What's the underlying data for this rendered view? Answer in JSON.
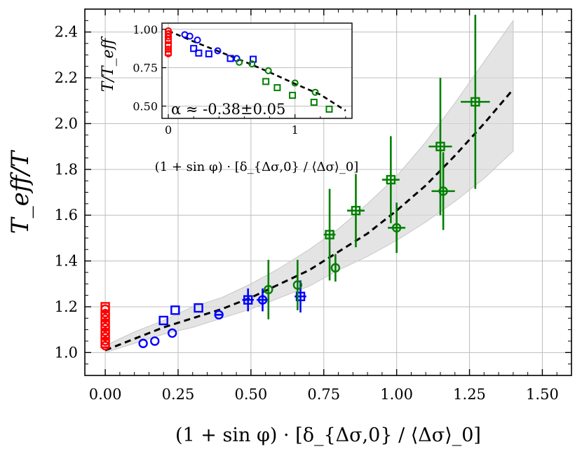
{
  "chart_data": [
    {
      "type": "scatter",
      "title": "",
      "xlabel": "(1 + sin φ) · [δ_{Δσ,0} / ⟨Δσ⟩_0]",
      "ylabel": "T_eff/T",
      "xlim": [
        -0.07,
        1.6
      ],
      "ylim": [
        0.9,
        2.5
      ],
      "grid": true,
      "x_ticks": [
        "0.00",
        "0.25",
        "0.50",
        "0.75",
        "1.00",
        "1.25",
        "1.50"
      ],
      "y_ticks": [
        "1.0",
        "1.2",
        "1.4",
        "1.6",
        "1.8",
        "2.0",
        "2.2",
        "2.4"
      ],
      "x_tick_values": [
        0,
        0.25,
        0.5,
        0.75,
        1.0,
        1.25,
        1.5
      ],
      "y_tick_values": [
        1.0,
        1.2,
        1.4,
        1.6,
        1.8,
        2.0,
        2.2,
        2.4
      ],
      "fit": {
        "x": [
          0,
          0.1,
          0.2,
          0.3,
          0.4,
          0.5,
          0.6,
          0.7,
          0.8,
          0.9,
          1.0,
          1.1,
          1.2,
          1.3,
          1.4
        ],
        "y": [
          1.01,
          1.06,
          1.11,
          1.15,
          1.19,
          1.24,
          1.3,
          1.36,
          1.44,
          1.52,
          1.62,
          1.73,
          1.86,
          2.0,
          2.15
        ],
        "band_upper": [
          1.03,
          1.09,
          1.14,
          1.2,
          1.24,
          1.3,
          1.37,
          1.45,
          1.54,
          1.65,
          1.77,
          1.92,
          2.09,
          2.27,
          2.45
        ],
        "band_lower": [
          1.0,
          1.04,
          1.08,
          1.11,
          1.15,
          1.19,
          1.24,
          1.29,
          1.36,
          1.42,
          1.49,
          1.57,
          1.66,
          1.76,
          1.88
        ]
      },
      "series": [
        {
          "name": "red circles",
          "color": "#ff0000",
          "marker": "circle",
          "x": [
            0,
            0,
            0,
            0,
            0,
            0,
            0,
            0,
            0
          ],
          "y": [
            1.03,
            1.05,
            1.07,
            1.09,
            1.11,
            1.13,
            1.15,
            1.17,
            1.19
          ],
          "xerr": [
            0,
            0,
            0,
            0,
            0,
            0,
            0,
            0,
            0
          ],
          "yerr": [
            0,
            0,
            0,
            0,
            0,
            0,
            0,
            0,
            0
          ]
        },
        {
          "name": "red squares",
          "color": "#ff0000",
          "marker": "square",
          "x": [
            0,
            0,
            0,
            0,
            0
          ],
          "y": [
            1.04,
            1.08,
            1.12,
            1.16,
            1.2
          ],
          "xerr": [
            0,
            0,
            0,
            0,
            0
          ],
          "yerr": [
            0,
            0,
            0,
            0,
            0
          ]
        },
        {
          "name": "blue circles",
          "color": "#0000ff",
          "marker": "circle",
          "x": [
            0.13,
            0.17,
            0.23,
            0.39,
            0.54
          ],
          "y": [
            1.04,
            1.05,
            1.085,
            1.165,
            1.23
          ],
          "xerr": [
            0,
            0,
            0,
            0.01,
            0.02
          ],
          "yerr": [
            0,
            0,
            0,
            0,
            0.05
          ]
        },
        {
          "name": "blue squares",
          "color": "#0000ff",
          "marker": "square",
          "x": [
            0.2,
            0.24,
            0.32,
            0.49,
            0.67
          ],
          "y": [
            1.14,
            1.185,
            1.195,
            1.23,
            1.245
          ],
          "xerr": [
            0,
            0,
            0,
            0.02,
            0.02
          ],
          "yerr": [
            0,
            0,
            0,
            0.05,
            0.07
          ]
        },
        {
          "name": "green circles",
          "color": "#007f00",
          "marker": "circle",
          "x": [
            0.56,
            0.66,
            0.79,
            1.0,
            1.16
          ],
          "y": [
            1.275,
            1.295,
            1.37,
            1.545,
            1.705
          ],
          "xerr": [
            0,
            0,
            0,
            0.03,
            0.04
          ],
          "yerr": [
            0.13,
            0.11,
            0.06,
            0.11,
            0.17
          ]
        },
        {
          "name": "green squares",
          "color": "#007f00",
          "marker": "square",
          "x": [
            0.77,
            0.86,
            0.98,
            1.15,
            1.27
          ],
          "y": [
            1.515,
            1.62,
            1.755,
            1.9,
            2.095
          ],
          "xerr": [
            0.02,
            0.03,
            0.03,
            0.04,
            0.05
          ],
          "yerr": [
            0.2,
            0.16,
            0.19,
            0.3,
            0.38
          ]
        }
      ]
    },
    {
      "type": "scatter",
      "title": "",
      "xlabel": "(1 + sin φ) · [δ_{Δσ,0} / ⟨Δσ⟩_0]",
      "ylabel": "T/T_eff",
      "xlim": [
        -0.05,
        1.45
      ],
      "ylim": [
        0.42,
        1.04
      ],
      "grid": true,
      "x_ticks": [
        "0",
        "1"
      ],
      "y_ticks": [
        "1.00",
        "0.75",
        "0.50"
      ],
      "x_tick_values": [
        0,
        1
      ],
      "y_tick_values": [
        1.0,
        0.75,
        0.5
      ],
      "annotation": "α ≈ -0.38±0.05",
      "fit": {
        "x": [
          0,
          0.2,
          0.4,
          0.6,
          0.8,
          1.0,
          1.2,
          1.4
        ],
        "y": [
          0.99,
          0.92,
          0.855,
          0.79,
          0.72,
          0.645,
          0.575,
          0.47
        ]
      },
      "series": [
        {
          "name": "red circles",
          "color": "#ff0000",
          "marker": "circle",
          "x": [
            0,
            0,
            0,
            0,
            0,
            0,
            0
          ],
          "y": [
            0.84,
            0.87,
            0.9,
            0.93,
            0.95,
            0.97,
            0.99
          ]
        },
        {
          "name": "red squares",
          "color": "#ff0000",
          "marker": "square",
          "x": [
            0,
            0,
            0,
            0
          ],
          "y": [
            0.85,
            0.89,
            0.93,
            0.97
          ]
        },
        {
          "name": "blue circles",
          "color": "#0000ff",
          "marker": "circle",
          "x": [
            0.13,
            0.17,
            0.23,
            0.39,
            0.54
          ],
          "y": [
            0.965,
            0.955,
            0.93,
            0.86,
            0.81
          ]
        },
        {
          "name": "blue squares",
          "color": "#0000ff",
          "marker": "square",
          "x": [
            0.2,
            0.24,
            0.32,
            0.49,
            0.67
          ],
          "y": [
            0.875,
            0.845,
            0.84,
            0.81,
            0.805
          ]
        },
        {
          "name": "green circles",
          "color": "#007f00",
          "marker": "circle",
          "x": [
            0.56,
            0.66,
            0.79,
            1.0,
            1.16
          ],
          "y": [
            0.785,
            0.775,
            0.73,
            0.65,
            0.59
          ]
        },
        {
          "name": "green squares",
          "color": "#007f00",
          "marker": "square",
          "x": [
            0.77,
            0.86,
            0.98,
            1.15,
            1.27
          ],
          "y": [
            0.66,
            0.62,
            0.57,
            0.525,
            0.48
          ]
        }
      ]
    }
  ]
}
